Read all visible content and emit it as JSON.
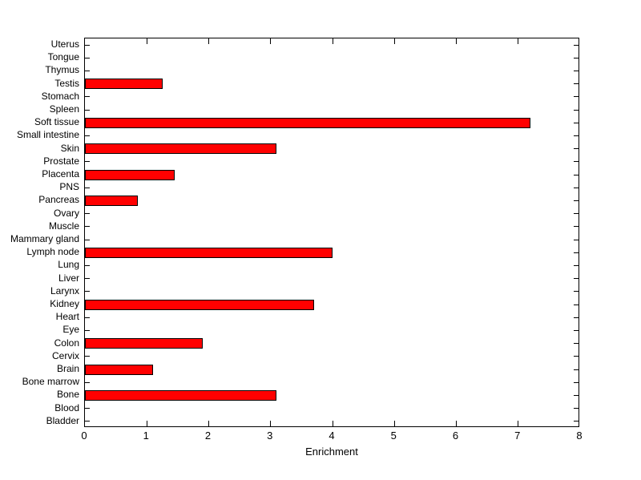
{
  "figure": {
    "background": "#ffffff",
    "axis_color": "#000000",
    "text_color": "#000000"
  },
  "chart_data": {
    "type": "bar",
    "orientation": "horizontal",
    "title": "",
    "xlabel": "Enrichment",
    "ylabel": "",
    "xlim": [
      0,
      8
    ],
    "xticks": [
      0,
      1,
      2,
      3,
      4,
      5,
      6,
      7,
      8
    ],
    "grid": false,
    "legend": null,
    "bar_color": "#ff0000",
    "bar_edge_color": "#000000",
    "categories": [
      "Uterus",
      "Tongue",
      "Thymus",
      "Testis",
      "Stomach",
      "Spleen",
      "Soft tissue",
      "Small intestine",
      "Skin",
      "Prostate",
      "Placenta",
      "PNS",
      "Pancreas",
      "Ovary",
      "Muscle",
      "Mammary gland",
      "Lymph node",
      "Lung",
      "Liver",
      "Larynx",
      "Kidney",
      "Heart",
      "Eye",
      "Colon",
      "Cervix",
      "Brain",
      "Bone marrow",
      "Bone",
      "Blood",
      "Bladder"
    ],
    "values": [
      0,
      0,
      0,
      1.25,
      0,
      0,
      7.2,
      0,
      3.1,
      0,
      1.45,
      0,
      0.85,
      0,
      0,
      0,
      4.0,
      0,
      0,
      0,
      3.7,
      0,
      0,
      1.9,
      0,
      1.1,
      0,
      3.1,
      0,
      0
    ]
  }
}
